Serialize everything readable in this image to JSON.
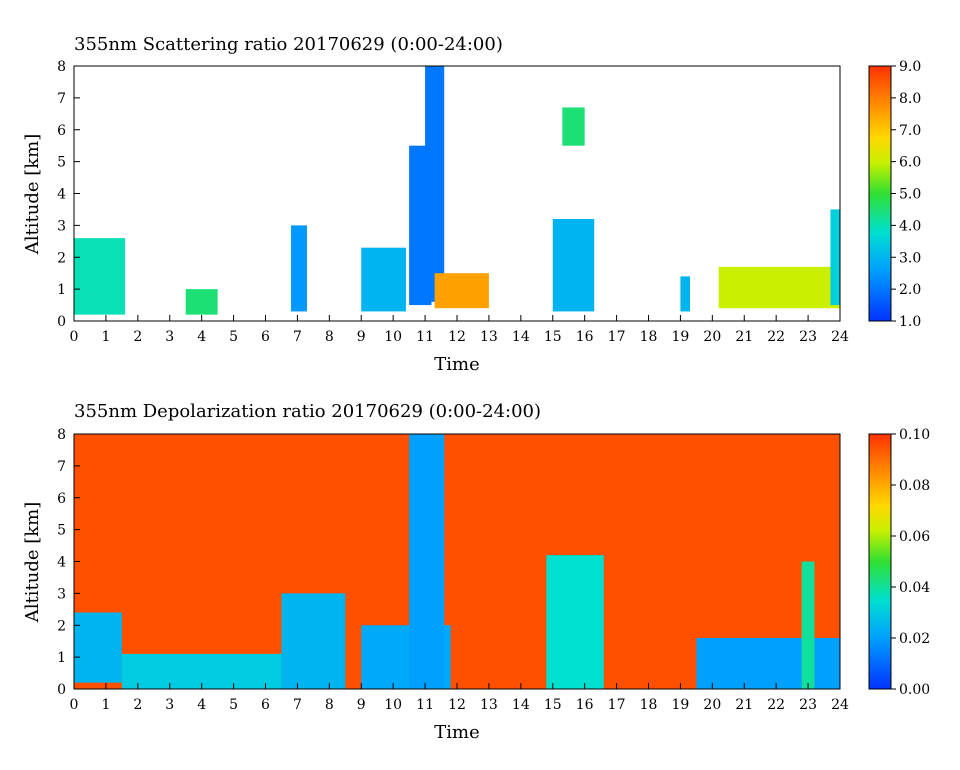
{
  "chart_data": [
    {
      "type": "heatmap",
      "title": "355nm Scattering ratio  20170629 (0:00-24:00)",
      "xlabel": "Time",
      "ylabel": "Altitude [km]",
      "xlim": [
        0,
        24
      ],
      "ylim": [
        0,
        8
      ],
      "x_ticks": [
        "0",
        "1",
        "2",
        "3",
        "4",
        "5",
        "6",
        "7",
        "8",
        "9",
        "10",
        "11",
        "12",
        "13",
        "14",
        "15",
        "16",
        "17",
        "18",
        "19",
        "20",
        "21",
        "22",
        "23",
        "24"
      ],
      "y_ticks": [
        "0",
        "1",
        "2",
        "3",
        "4",
        "5",
        "6",
        "7",
        "8"
      ],
      "colorbar": {
        "range": [
          1.0,
          9.0
        ],
        "ticks": [
          "1.0",
          "2.0",
          "3.0",
          "4.0",
          "5.0",
          "6.0",
          "7.0",
          "8.0",
          "9.0"
        ]
      },
      "features": [
        {
          "time": [
            0.0,
            1.6
          ],
          "alt": [
            0.2,
            2.6
          ],
          "value": 4.0
        },
        {
          "time": [
            3.5,
            4.5
          ],
          "alt": [
            0.2,
            1.0
          ],
          "value": 4.5
        },
        {
          "time": [
            6.8,
            7.3
          ],
          "alt": [
            0.3,
            3.0
          ],
          "value": 2.5
        },
        {
          "time": [
            9.0,
            10.4
          ],
          "alt": [
            0.3,
            2.3
          ],
          "value": 3.0
        },
        {
          "time": [
            10.5,
            11.2
          ],
          "alt": [
            0.5,
            5.5
          ],
          "value": 2.0
        },
        {
          "time": [
            11.0,
            11.6
          ],
          "alt": [
            0.6,
            8.0
          ],
          "value": 2.0
        },
        {
          "time": [
            11.3,
            13.0
          ],
          "alt": [
            0.4,
            1.5
          ],
          "value": 7.5
        },
        {
          "time": [
            15.0,
            16.3
          ],
          "alt": [
            0.3,
            3.2
          ],
          "value": 3.0
        },
        {
          "time": [
            15.3,
            16.0
          ],
          "alt": [
            5.5,
            6.7
          ],
          "value": 4.5
        },
        {
          "time": [
            19.0,
            19.3
          ],
          "alt": [
            0.3,
            1.4
          ],
          "value": 3.0
        },
        {
          "time": [
            20.2,
            24.0
          ],
          "alt": [
            0.4,
            1.7
          ],
          "value": 6.0
        },
        {
          "time": [
            23.7,
            24.0
          ],
          "alt": [
            0.5,
            3.5
          ],
          "value": 3.5
        }
      ]
    },
    {
      "type": "heatmap",
      "title": "355nm Depolarization ratio  20170629 (0:00-24:00)",
      "xlabel": "Time",
      "ylabel": "Altitude [km]",
      "xlim": [
        0,
        24
      ],
      "ylim": [
        0,
        8
      ],
      "x_ticks": [
        "0",
        "1",
        "2",
        "3",
        "4",
        "5",
        "6",
        "7",
        "8",
        "9",
        "10",
        "11",
        "12",
        "13",
        "14",
        "15",
        "16",
        "17",
        "18",
        "19",
        "20",
        "21",
        "22",
        "23",
        "24"
      ],
      "y_ticks": [
        "0",
        "1",
        "2",
        "3",
        "4",
        "5",
        "6",
        "7",
        "8"
      ],
      "colorbar": {
        "range": [
          0.0,
          0.1
        ],
        "ticks": [
          "0.00",
          "0.02",
          "0.04",
          "0.06",
          "0.08",
          "0.10"
        ]
      },
      "background_value": 0.095,
      "features": [
        {
          "time": [
            0.0,
            1.5
          ],
          "alt": [
            0.2,
            2.4
          ],
          "value": 0.025
        },
        {
          "time": [
            1.5,
            6.5
          ],
          "alt": [
            0.0,
            1.1
          ],
          "value": 0.03
        },
        {
          "time": [
            6.5,
            8.5
          ],
          "alt": [
            0.0,
            3.0
          ],
          "value": 0.025
        },
        {
          "time": [
            9.0,
            11.8
          ],
          "alt": [
            0.0,
            2.0
          ],
          "value": 0.022
        },
        {
          "time": [
            10.5,
            11.6
          ],
          "alt": [
            0.0,
            8.0
          ],
          "value": 0.02
        },
        {
          "time": [
            14.8,
            16.6
          ],
          "alt": [
            0.0,
            4.2
          ],
          "value": 0.035
        },
        {
          "time": [
            19.5,
            24.0
          ],
          "alt": [
            0.0,
            1.6
          ],
          "value": 0.02
        },
        {
          "time": [
            22.8,
            23.2
          ],
          "alt": [
            0.0,
            4.0
          ],
          "value": 0.04
        }
      ]
    }
  ]
}
